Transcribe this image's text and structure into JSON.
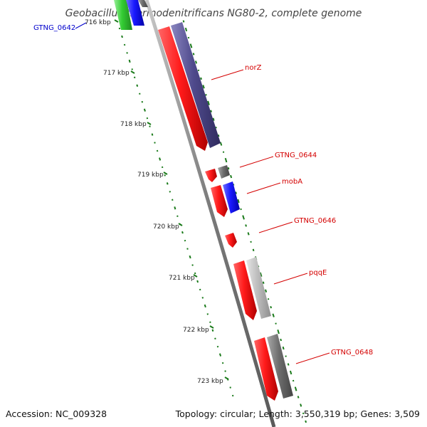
{
  "title": "Geobacillus thermodenitrificans NG80-2, complete genome",
  "accession": "Accession: NC_009328",
  "summary": "Topology: circular; Length: 3,550,319 bp; Genes: 3,509",
  "colors": {
    "backbone": "#808080",
    "gc_ticks": "#1a7a1a",
    "gene_red": "#ff1a1a",
    "gene_purple": "#4f4a8c",
    "gene_blue": "#1a1aff",
    "gene_grey": "#6e6e6e",
    "gene_lightgrey": "#bdbdbd",
    "gene_green": "#33cc33",
    "label_red": "#d40000",
    "label_blue": "#0000cc"
  },
  "kbp_labels": [
    "716 kbp",
    "717 kbp",
    "718 kbp",
    "719 kbp",
    "720 kbp",
    "721 kbp",
    "722 kbp",
    "723 kbp"
  ],
  "gene_labels": [
    {
      "name": "GTNG_0642",
      "color": "blue"
    },
    {
      "name": "norZ",
      "color": "red"
    },
    {
      "name": "GTNG_0644",
      "color": "red"
    },
    {
      "name": "mobA",
      "color": "red"
    },
    {
      "name": "GTNG_0646",
      "color": "red"
    },
    {
      "name": "pqqE",
      "color": "red"
    },
    {
      "name": "GTNG_0648",
      "color": "red"
    }
  ]
}
